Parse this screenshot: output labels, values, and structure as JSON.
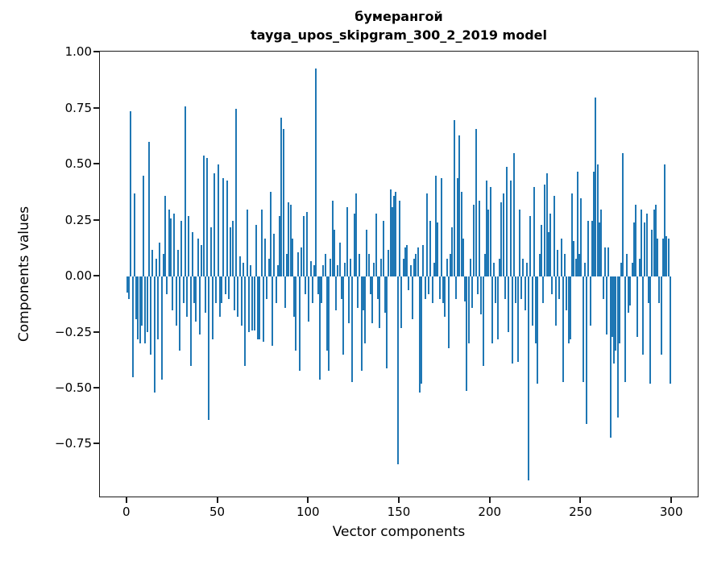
{
  "chart_data": {
    "type": "bar",
    "title_lines": [
      "бумерангой",
      "tayga_upos_skipgram_300_2_2019 model"
    ],
    "title": "бумерангой\ntayga_upos_skipgram_300_2_2019 model",
    "xlabel": "Vector components",
    "ylabel": "Components values",
    "bar_color": "#1f77b4",
    "background_color": "#ffffff",
    "grid": false,
    "legend": null,
    "x_start": 0,
    "n_components": 300,
    "xlim": [
      -15,
      315
    ],
    "ylim": [
      -0.99,
      1.005
    ],
    "x_ticks": [
      0,
      50,
      100,
      150,
      200,
      250,
      300
    ],
    "x_tick_labels": [
      "0",
      "50",
      "100",
      "150",
      "200",
      "250",
      "300"
    ],
    "y_ticks": [
      1.0,
      0.75,
      0.5,
      0.25,
      0.0,
      -0.25,
      -0.5,
      -0.75
    ],
    "y_tick_labels": [
      "1.00",
      "0.75",
      "0.50",
      "0.25",
      "0.00",
      "−0.25",
      "−0.50",
      "−0.75"
    ],
    "values": [
      -0.07,
      -0.1,
      0.74,
      -0.45,
      0.37,
      -0.19,
      -0.28,
      -0.3,
      -0.22,
      0.45,
      -0.3,
      -0.25,
      0.6,
      -0.35,
      0.12,
      -0.52,
      0.08,
      -0.28,
      0.15,
      -0.46,
      0.1,
      0.36,
      -0.08,
      0.3,
      0.26,
      -0.15,
      0.28,
      -0.22,
      0.12,
      -0.33,
      0.25,
      -0.12,
      0.76,
      -0.18,
      0.27,
      -0.4,
      0.2,
      -0.12,
      -0.2,
      0.17,
      -0.26,
      0.14,
      0.54,
      -0.16,
      0.53,
      -0.64,
      0.22,
      -0.28,
      0.46,
      -0.12,
      0.5,
      -0.18,
      -0.12,
      0.44,
      -0.08,
      0.43,
      -0.1,
      0.22,
      0.25,
      -0.15,
      0.75,
      -0.18,
      0.09,
      -0.22,
      0.06,
      -0.4,
      0.3,
      -0.25,
      0.05,
      -0.24,
      -0.24,
      0.23,
      -0.28,
      -0.28,
      0.3,
      -0.29,
      0.17,
      -0.1,
      0.08,
      0.38,
      -0.31,
      0.19,
      -0.12,
      0.05,
      0.27,
      0.71,
      0.66,
      -0.14,
      0.1,
      0.33,
      0.32,
      0.17,
      -0.18,
      -0.33,
      0.11,
      -0.42,
      0.13,
      0.27,
      -0.08,
      0.29,
      -0.2,
      0.07,
      -0.12,
      0.05,
      0.93,
      -0.08,
      -0.46,
      -0.12,
      0.05,
      0.1,
      -0.33,
      -0.42,
      0.08,
      0.34,
      0.21,
      -0.15,
      0.05,
      0.15,
      -0.1,
      -0.35,
      0.06,
      0.31,
      -0.21,
      0.08,
      -0.47,
      0.28,
      0.37,
      -0.14,
      0.1,
      -0.42,
      -0.15,
      -0.3,
      0.21,
      0.1,
      -0.08,
      -0.21,
      0.06,
      0.28,
      -0.1,
      -0.23,
      0.08,
      0.25,
      -0.16,
      -0.41,
      0.12,
      0.39,
      0.31,
      0.36,
      0.38,
      -0.84,
      0.34,
      -0.23,
      0.08,
      0.13,
      0.14,
      -0.06,
      0.05,
      -0.19,
      0.08,
      0.1,
      0.13,
      -0.52,
      -0.48,
      0.14,
      -0.1,
      0.37,
      -0.08,
      0.25,
      -0.12,
      0.06,
      0.45,
      0.24,
      -0.1,
      0.44,
      -0.12,
      -0.18,
      0.08,
      -0.32,
      0.1,
      0.22,
      0.7,
      -0.1,
      0.44,
      0.63,
      0.38,
      0.17,
      -0.11,
      -0.51,
      -0.3,
      0.08,
      -0.14,
      0.32,
      0.66,
      -0.08,
      0.34,
      -0.17,
      -0.4,
      0.1,
      0.43,
      0.3,
      0.4,
      -0.3,
      0.06,
      -0.12,
      -0.28,
      0.08,
      0.33,
      0.37,
      -0.1,
      0.49,
      -0.25,
      0.43,
      -0.39,
      0.55,
      -0.12,
      -0.38,
      0.3,
      -0.1,
      0.08,
      -0.15,
      0.06,
      -0.91,
      0.27,
      -0.22,
      0.4,
      -0.3,
      -0.48,
      0.1,
      0.23,
      -0.12,
      0.41,
      0.46,
      0.2,
      0.28,
      -0.08,
      0.36,
      -0.22,
      0.12,
      -0.1,
      0.17,
      -0.47,
      0.1,
      -0.15,
      -0.3,
      -0.28,
      0.37,
      0.16,
      0.08,
      0.47,
      0.1,
      0.35,
      -0.47,
      0.06,
      -0.66,
      0.25,
      -0.22,
      0.25,
      0.47,
      0.8,
      0.5,
      0.24,
      0.3,
      -0.1,
      0.13,
      -0.26,
      0.13,
      -0.72,
      -0.27,
      -0.39,
      -0.33,
      -0.63,
      -0.3,
      0.06,
      0.55,
      -0.47,
      0.1,
      -0.16,
      -0.13,
      0.06,
      0.24,
      0.32,
      -0.27,
      0.08,
      0.3,
      -0.35,
      0.24,
      0.28,
      -0.12,
      -0.48,
      0.21,
      0.3,
      0.32,
      0.17,
      -0.12,
      -0.35,
      0.17,
      0.5,
      0.18,
      0.17,
      -0.48
    ]
  }
}
